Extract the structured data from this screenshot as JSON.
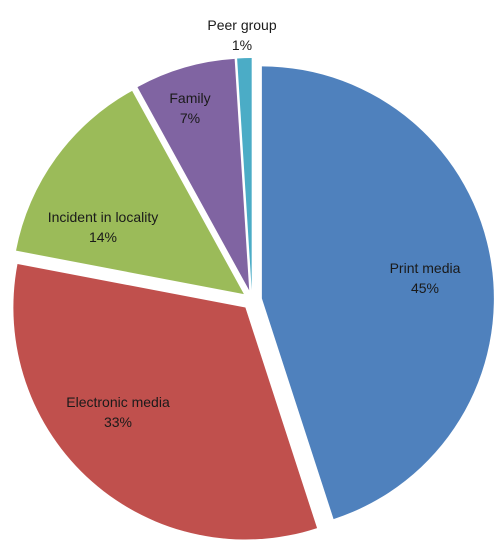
{
  "chart_data": {
    "type": "pie",
    "title": "",
    "slices": [
      {
        "label": "Print media",
        "value": 45,
        "value_label": "45%",
        "color": "#4F81BD"
      },
      {
        "label": "Electronic media",
        "value": 33,
        "value_label": "33%",
        "color": "#C0504D"
      },
      {
        "label": "Incident in locality",
        "value": 14,
        "value_label": "14%",
        "color": "#9BBB59"
      },
      {
        "label": "Family",
        "value": 7,
        "value_label": "7%",
        "color": "#8064A2"
      },
      {
        "label": "Peer group",
        "value": 1,
        "value_label": "1%",
        "color": "#4BACC6"
      }
    ],
    "exploded": true,
    "data_labels": "category-and-percent",
    "legend": "none"
  }
}
